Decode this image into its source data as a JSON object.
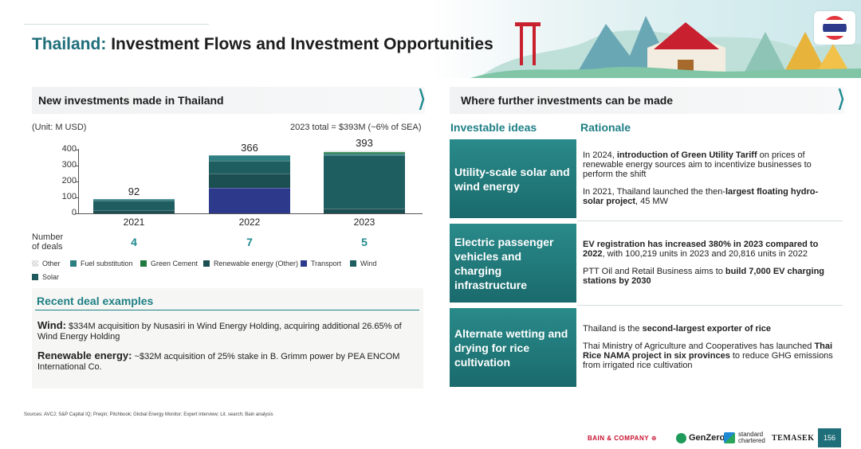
{
  "header": {
    "title_highlight": "Thailand:",
    "title_rest": "Investment Flows and Investment Opportunities",
    "flag_icon": "thailand-flag-icon"
  },
  "left": {
    "section_title": "New investments made in Thailand",
    "unit": "(Unit: M USD)",
    "total": "2023 total = $393M (~6% of SEA)",
    "deals_label_1": "Number",
    "deals_label_2": "of deals",
    "deal_counts": [
      "4",
      "7",
      "5"
    ]
  },
  "chart_data": {
    "type": "bar",
    "stacked": true,
    "categories": [
      "2021",
      "2022",
      "2023"
    ],
    "totals": [
      92,
      366,
      393
    ],
    "total_labels": [
      "92",
      "366",
      "393"
    ],
    "ylim": [
      0,
      400
    ],
    "yticks": [
      "400",
      "300",
      "200",
      "100",
      "0"
    ],
    "series": [
      {
        "name": "Solar",
        "color": "#1f5a5c",
        "values": [
          0,
          0,
          0
        ]
      },
      {
        "name": "Transport",
        "color": "#2d3a8c",
        "values": [
          0,
          160,
          0
        ]
      },
      {
        "name": "Renewable energy (Other)",
        "color": "#1c4f52",
        "values": [
          20,
          90,
          32
        ]
      },
      {
        "name": "Wind",
        "color": "#1f5e60",
        "values": [
          62,
          80,
          334
        ]
      },
      {
        "name": "Fuel substitution",
        "color": "#2e7e82",
        "values": [
          10,
          36,
          10
        ]
      },
      {
        "name": "Green Cement",
        "color": "#1e7a3e",
        "values": [
          0,
          0,
          10
        ]
      },
      {
        "name": "Other",
        "color": "#e9eceb",
        "values": [
          0,
          0,
          7
        ]
      }
    ],
    "legend": [
      {
        "name": "Other",
        "color": "#e4e4e4"
      },
      {
        "name": "Fuel substitution",
        "color": "#2e7e82"
      },
      {
        "name": "Green Cement",
        "color": "#1e7a3e"
      },
      {
        "name": "Renewable energy (Other)",
        "color": "#1c4f52"
      },
      {
        "name": "Transport",
        "color": "#2d3a8c"
      },
      {
        "name": "Wind",
        "color": "#1f5e60"
      },
      {
        "name": "Solar",
        "color": "#1f5a5c"
      }
    ]
  },
  "recent": {
    "title": "Recent deal examples",
    "deal1_label": "Wind:",
    "deal1_text": "$334M acquisition by Nusasiri in Wind Energy Holding, acquiring additional 26.65% of Wind Energy Holding",
    "deal2_label": "Renewable energy:",
    "deal2_text": "~$32M acquisition of 25% stake in B. Grimm power by PEA ENCOM International Co."
  },
  "sources": "Sources: AVCJ; S&P Capital IQ; Preqin; Pitchbook; Global Energy Monitor; Expert interview; Lit. search; Bain analysis",
  "right": {
    "section_title": "Where further investments can be made",
    "col1": "Investable ideas",
    "col2": "Rationale",
    "ideas": [
      {
        "title": "Utility-scale solar and wind energy",
        "r1_pre": "In 2024, ",
        "r1_bold": "introduction of Green Utility Tariff",
        "r1_post": " on prices of renewable energy sources aim to incentivize businesses to perform the shift",
        "r2_pre": "In 2021, Thailand launched the then-",
        "r2_bold": "largest floating hydro-solar project",
        "r2_post": ", 45 MW"
      },
      {
        "title": "Electric passenger vehicles and charging infrastructure",
        "r1_pre": "",
        "r1_bold": "EV registration has increased 380% in 2023 compared to 2022",
        "r1_post": ", with 100,219 units in 2023 and 20,816 units in 2022",
        "r2_pre": "PTT Oil and Retail Business aims to ",
        "r2_bold": "build 7,000 EV charging stations by 2030",
        "r2_post": ""
      },
      {
        "title": "Alternate wetting and drying for rice cultivation",
        "r1_pre": "Thailand is the ",
        "r1_bold": "second-largest exporter of rice",
        "r1_post": "",
        "r2_pre": "Thai Ministry of Agriculture and Cooperatives has launched ",
        "r2_bold": "Thai Rice NAMA project in six provinces",
        "r2_post": " to reduce GHG emissions from irrigated rice cultivation"
      }
    ]
  },
  "footer": {
    "bain": "BAIN & COMPANY",
    "genzero": "GenZero",
    "sc_1": "standard",
    "sc_2": "chartered",
    "temasek": "TEMASEK",
    "page": "156"
  }
}
